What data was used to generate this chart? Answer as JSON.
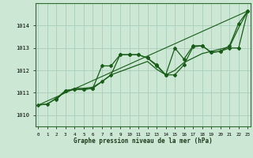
{
  "xlabel": "Graphe pression niveau de la mer (hPa)",
  "bg_color": "#cce8d4",
  "grid_color": "#a8cdb8",
  "line_color": "#1a5c1a",
  "x_ticks": [
    0,
    1,
    2,
    3,
    4,
    5,
    6,
    7,
    8,
    9,
    10,
    11,
    12,
    13,
    14,
    15,
    16,
    17,
    18,
    19,
    20,
    21,
    22,
    23
  ],
  "ylim": [
    1009.5,
    1015.0
  ],
  "yticks": [
    1010,
    1011,
    1012,
    1013,
    1014
  ],
  "series_smooth": {
    "x": [
      0,
      1,
      2,
      3,
      4,
      5,
      6,
      7,
      8,
      9,
      10,
      11,
      12,
      13,
      14,
      15,
      16,
      17,
      18,
      19,
      20,
      21,
      22,
      23
    ],
    "y": [
      1010.45,
      1010.5,
      1010.75,
      1011.05,
      1011.2,
      1011.2,
      1011.25,
      1011.5,
      1011.8,
      1011.95,
      1012.1,
      1012.25,
      1012.4,
      1012.05,
      1011.8,
      1012.0,
      1012.35,
      1012.55,
      1012.75,
      1012.85,
      1012.95,
      1013.05,
      1013.9,
      1014.65
    ]
  },
  "series_jagged1": {
    "x": [
      0,
      1,
      2,
      3,
      4,
      5,
      6,
      7,
      8,
      9,
      10,
      11,
      12,
      13,
      14,
      15,
      16,
      17,
      18,
      19,
      20,
      21,
      22,
      23
    ],
    "y": [
      1010.45,
      1010.5,
      1010.75,
      1011.1,
      1011.15,
      1011.15,
      1011.2,
      1012.2,
      1012.2,
      1012.7,
      1012.7,
      1012.7,
      1012.55,
      1012.25,
      1011.8,
      1011.8,
      1012.25,
      1013.05,
      1013.1,
      1012.8,
      1012.85,
      1013.0,
      1013.0,
      1014.65
    ]
  },
  "series_jagged2": {
    "x": [
      2,
      3,
      4,
      5,
      6,
      7,
      8,
      9,
      10,
      11,
      12,
      13,
      14,
      15,
      16,
      17,
      18,
      19,
      20,
      21,
      22,
      23
    ],
    "y": [
      1010.7,
      1011.1,
      1011.15,
      1011.15,
      1011.2,
      1011.5,
      1011.8,
      1012.7,
      1012.7,
      1012.7,
      1012.55,
      1012.2,
      1011.8,
      1013.0,
      1012.5,
      1013.1,
      1013.1,
      1012.8,
      1012.85,
      1013.1,
      1014.1,
      1014.65
    ]
  },
  "series_straight": {
    "x": [
      0,
      23
    ],
    "y": [
      1010.45,
      1014.65
    ]
  }
}
